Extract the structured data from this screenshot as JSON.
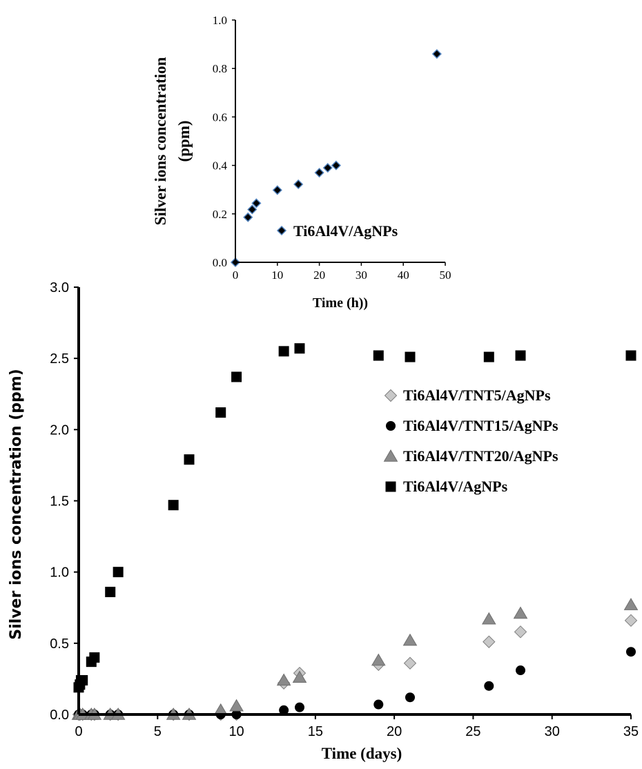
{
  "chart_data": [
    {
      "id": "main",
      "type": "scatter",
      "xlabel": "Time (days)",
      "ylabel": "Silver ions concentration (ppm)",
      "xlim": [
        0,
        35
      ],
      "ylim": [
        0,
        3.0
      ],
      "xticks": [
        "0",
        "5",
        "10",
        "15",
        "20",
        "25",
        "30",
        "35"
      ],
      "yticks": [
        "0.0",
        "0.5",
        "1.0",
        "1.5",
        "2.0",
        "2.5",
        "3.0"
      ],
      "grid": false,
      "legend_position": "right",
      "series": [
        {
          "name": "Ti6Al4V/TNT5/AgNPs",
          "marker": "diamond",
          "color": "#c0c0c0",
          "points": [
            [
              0,
              0
            ],
            [
              0.08,
              0
            ],
            [
              0.25,
              0
            ],
            [
              0.8,
              0
            ],
            [
              1,
              0
            ],
            [
              2,
              0
            ],
            [
              2.5,
              0
            ],
            [
              6,
              0
            ],
            [
              7,
              0
            ],
            [
              9,
              0
            ],
            [
              10,
              0
            ],
            [
              13,
              0.22
            ],
            [
              14,
              0.29
            ],
            [
              19,
              0.35
            ],
            [
              21,
              0.36
            ],
            [
              26,
              0.51
            ],
            [
              28,
              0.58
            ],
            [
              35,
              0.66
            ]
          ]
        },
        {
          "name": "Ti6Al4V/TNT15/AgNPs",
          "marker": "circle",
          "color": "#000000",
          "points": [
            [
              0,
              0
            ],
            [
              0.08,
              0
            ],
            [
              0.25,
              0
            ],
            [
              0.8,
              0
            ],
            [
              1,
              0
            ],
            [
              2,
              0
            ],
            [
              2.5,
              0
            ],
            [
              6,
              0
            ],
            [
              7,
              0
            ],
            [
              9,
              0
            ],
            [
              10,
              0
            ],
            [
              13,
              0.03
            ],
            [
              14,
              0.05
            ],
            [
              19,
              0.07
            ],
            [
              21,
              0.12
            ],
            [
              26,
              0.2
            ],
            [
              28,
              0.31
            ],
            [
              35,
              0.44
            ]
          ]
        },
        {
          "name": "Ti6Al4V/TNT20/AgNPs",
          "marker": "triangle",
          "color": "#808080",
          "points": [
            [
              0,
              0
            ],
            [
              0.08,
              0
            ],
            [
              0.25,
              0
            ],
            [
              0.8,
              0
            ],
            [
              1,
              0
            ],
            [
              2,
              0
            ],
            [
              2.5,
              0
            ],
            [
              6,
              0
            ],
            [
              7,
              0
            ],
            [
              9,
              0.03
            ],
            [
              10,
              0.06
            ],
            [
              13,
              0.24
            ],
            [
              14,
              0.26
            ],
            [
              19,
              0.38
            ],
            [
              21,
              0.52
            ],
            [
              26,
              0.67
            ],
            [
              28,
              0.71
            ],
            [
              35,
              0.77
            ]
          ]
        },
        {
          "name": "Ti6Al4V/AgNPs",
          "marker": "square",
          "color": "#000000",
          "points": [
            [
              0,
              0.19
            ],
            [
              0.08,
              0.21
            ],
            [
              0.15,
              0.24
            ],
            [
              0.25,
              0.24
            ],
            [
              0.8,
              0.37
            ],
            [
              1,
              0.4
            ],
            [
              2,
              0.86
            ],
            [
              2.5,
              1.0
            ],
            [
              6,
              1.47
            ],
            [
              7,
              1.79
            ],
            [
              9,
              2.12
            ],
            [
              10,
              2.37
            ],
            [
              13,
              2.55
            ],
            [
              14,
              2.57
            ],
            [
              19,
              2.52
            ],
            [
              21,
              2.51
            ],
            [
              26,
              2.51
            ],
            [
              28,
              2.52
            ],
            [
              35,
              2.52
            ]
          ]
        }
      ]
    },
    {
      "id": "inset",
      "type": "scatter",
      "xlabel": "Time (h))",
      "ylabel": "Silver ions concentration (ppm)",
      "xlim": [
        0,
        50
      ],
      "ylim": [
        0,
        1.0
      ],
      "xticks": [
        "0",
        "10",
        "20",
        "30",
        "40",
        "50"
      ],
      "yticks": [
        "0.0",
        "0.2",
        "0.4",
        "0.6",
        "0.8",
        "1.0"
      ],
      "grid": false,
      "legend_position": "bottom-left",
      "series": [
        {
          "name": "Ti6Al4V/AgNPs",
          "marker": "diamond",
          "color": "#000000",
          "edge_color": "#4f81bd",
          "points": [
            [
              0,
              0
            ],
            [
              3,
              0.186
            ],
            [
              4,
              0.218
            ],
            [
              5,
              0.244
            ],
            [
              10,
              0.298
            ],
            [
              15,
              0.322
            ],
            [
              20,
              0.37
            ],
            [
              22,
              0.39
            ],
            [
              24,
              0.4
            ],
            [
              48,
              0.86
            ]
          ]
        }
      ]
    }
  ]
}
